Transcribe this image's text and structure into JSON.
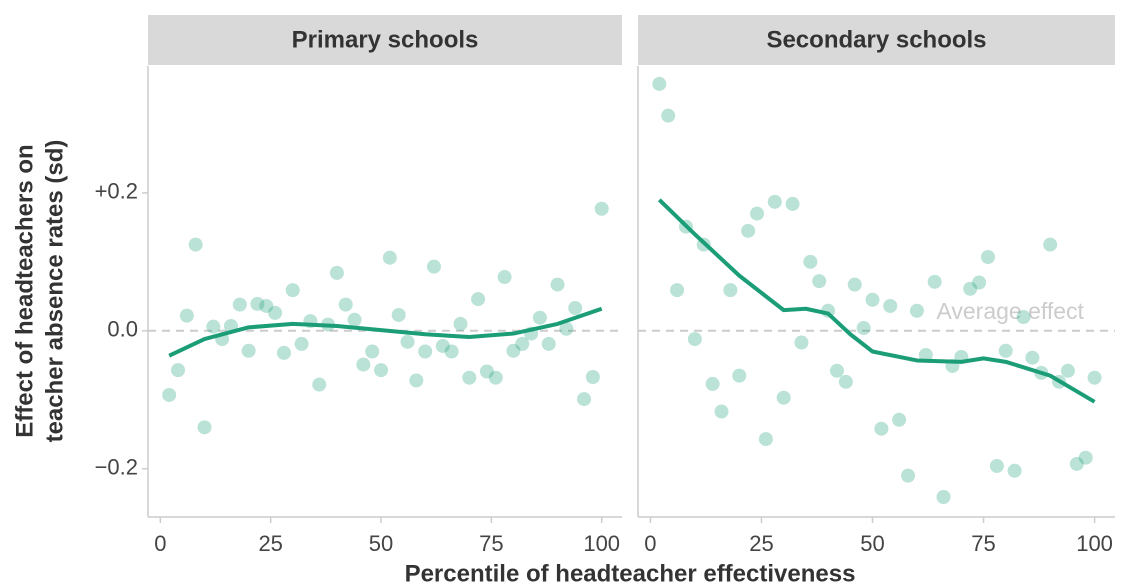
{
  "chart_data": [
    {
      "type": "scatter",
      "title": "Primary schools",
      "ylabel": [
        "Effect of headteachers on",
        "teacher absence rates (sd)"
      ],
      "xlabel": "Percentile of headteacher effectiveness",
      "x": [
        2,
        4,
        6,
        8,
        10,
        12,
        14,
        16,
        18,
        20,
        22,
        24,
        26,
        28,
        30,
        32,
        34,
        36,
        38,
        40,
        42,
        44,
        46,
        48,
        50,
        52,
        54,
        56,
        58,
        60,
        62,
        64,
        66,
        68,
        70,
        72,
        74,
        76,
        78,
        80,
        82,
        84,
        86,
        88,
        90,
        92,
        94,
        96,
        98,
        100
      ],
      "y": [
        -0.093,
        -0.057,
        0.022,
        0.125,
        -0.14,
        0.006,
        -0.012,
        0.007,
        0.038,
        -0.029,
        0.039,
        0.036,
        0.026,
        -0.032,
        0.059,
        -0.019,
        0.014,
        -0.078,
        0.009,
        0.084,
        0.038,
        0.016,
        -0.049,
        -0.03,
        -0.057,
        0.106,
        0.023,
        -0.016,
        -0.072,
        -0.03,
        0.093,
        -0.022,
        -0.03,
        0.01,
        -0.068,
        0.046,
        -0.059,
        -0.068,
        0.078,
        -0.029,
        -0.019,
        -0.004,
        0.019,
        -0.019,
        0.067,
        0.003,
        0.033,
        -0.099,
        -0.067,
        0.177
      ],
      "smooth_x": [
        2,
        10,
        20,
        30,
        40,
        50,
        60,
        70,
        80,
        90,
        100
      ],
      "smooth_y": [
        -0.036,
        -0.012,
        0.005,
        0.01,
        0.007,
        0.001,
        -0.005,
        -0.009,
        -0.004,
        0.01,
        0.032
      ],
      "color": "#1b9e77",
      "hline": 0,
      "xlim": [
        -2.8,
        104.6
      ],
      "ylim": [
        -0.27,
        0.384
      ],
      "xticks": [
        0,
        25,
        50,
        75,
        100
      ],
      "yticks": [
        {
          "value": -0.2,
          "label": "−0.2"
        },
        {
          "value": 0,
          "label": "0.0"
        },
        {
          "value": 0.2,
          "label": "+0.2"
        }
      ]
    },
    {
      "type": "scatter",
      "title": "Secondary schools",
      "annotation": "Average effect",
      "annotation_x": 81,
      "x": [
        2,
        4,
        6,
        8,
        10,
        12,
        14,
        16,
        18,
        20,
        22,
        24,
        26,
        28,
        30,
        32,
        34,
        36,
        38,
        40,
        42,
        44,
        46,
        48,
        50,
        52,
        54,
        56,
        58,
        60,
        62,
        64,
        66,
        68,
        70,
        72,
        74,
        76,
        78,
        80,
        82,
        84,
        86,
        88,
        90,
        92,
        94,
        96,
        98,
        100
      ],
      "y": [
        0.358,
        0.312,
        0.059,
        0.151,
        -0.012,
        0.125,
        -0.077,
        -0.117,
        0.059,
        -0.065,
        0.145,
        0.17,
        -0.157,
        0.187,
        -0.097,
        0.184,
        -0.017,
        0.1,
        0.072,
        0.029,
        -0.058,
        -0.074,
        0.067,
        0.004,
        0.045,
        -0.142,
        0.036,
        -0.129,
        -0.21,
        0.029,
        -0.035,
        0.071,
        -0.241,
        -0.051,
        -0.038,
        0.061,
        0.07,
        0.107,
        -0.196,
        -0.029,
        -0.203,
        0.02,
        -0.039,
        -0.061,
        0.125,
        -0.074,
        -0.058,
        -0.193,
        -0.184,
        -0.068
      ],
      "smooth_x": [
        2,
        10,
        20,
        30,
        35,
        40,
        45,
        50,
        60,
        70,
        75,
        80,
        90,
        100
      ],
      "smooth_y": [
        0.19,
        0.14,
        0.08,
        0.03,
        0.032,
        0.025,
        -0.005,
        -0.03,
        -0.043,
        -0.045,
        -0.04,
        -0.045,
        -0.065,
        -0.103
      ],
      "color": "#1b9e77",
      "hline": 0,
      "xlim": [
        -2.8,
        104.6
      ],
      "ylim": [
        -0.27,
        0.384
      ],
      "xticks": [
        0,
        25,
        50,
        75,
        100
      ]
    }
  ]
}
